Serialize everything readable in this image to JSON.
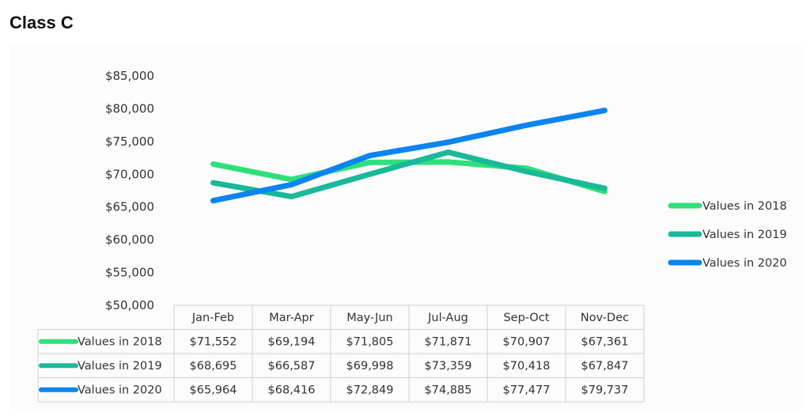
{
  "title": "Class C",
  "chart_data": {
    "type": "line",
    "title": "Class C",
    "xlabel": "",
    "ylabel": "",
    "ylim": [
      50000,
      85000
    ],
    "y_ticks": [
      "$85,000",
      "$80,000",
      "$75,000",
      "$70,000",
      "$65,000",
      "$60,000",
      "$55,000",
      "$50,000"
    ],
    "y_tick_values": [
      85000,
      80000,
      75000,
      70000,
      65000,
      60000,
      55000,
      50000
    ],
    "categories": [
      "Jan-Feb",
      "Mar-Apr",
      "May-Jun",
      "Jul-Aug",
      "Sep-Oct",
      "Nov-Dec"
    ],
    "series": [
      {
        "name": "Values in 2018",
        "color": "#2fe07a",
        "values": [
          71552,
          69194,
          71805,
          71871,
          70907,
          67361
        ],
        "labels": [
          "$71,552",
          "$69,194",
          "$71,805",
          "$71,871",
          "$70,907",
          "$67,361"
        ]
      },
      {
        "name": "Values in 2019",
        "color": "#19b999",
        "values": [
          68695,
          66587,
          69998,
          73359,
          70418,
          67847
        ],
        "labels": [
          "$68,695",
          "$66,587",
          "$69,998",
          "$73,359",
          "$70,418",
          "$67,847"
        ]
      },
      {
        "name": "Values in 2020",
        "color": "#0a84f0",
        "values": [
          65964,
          68416,
          72849,
          74885,
          77477,
          79737
        ],
        "labels": [
          "$65,964",
          "$68,416",
          "$72,849",
          "$74,885",
          "$77,477",
          "$79,737"
        ]
      }
    ],
    "legend_position": "right",
    "data_table": true,
    "grid": false
  }
}
